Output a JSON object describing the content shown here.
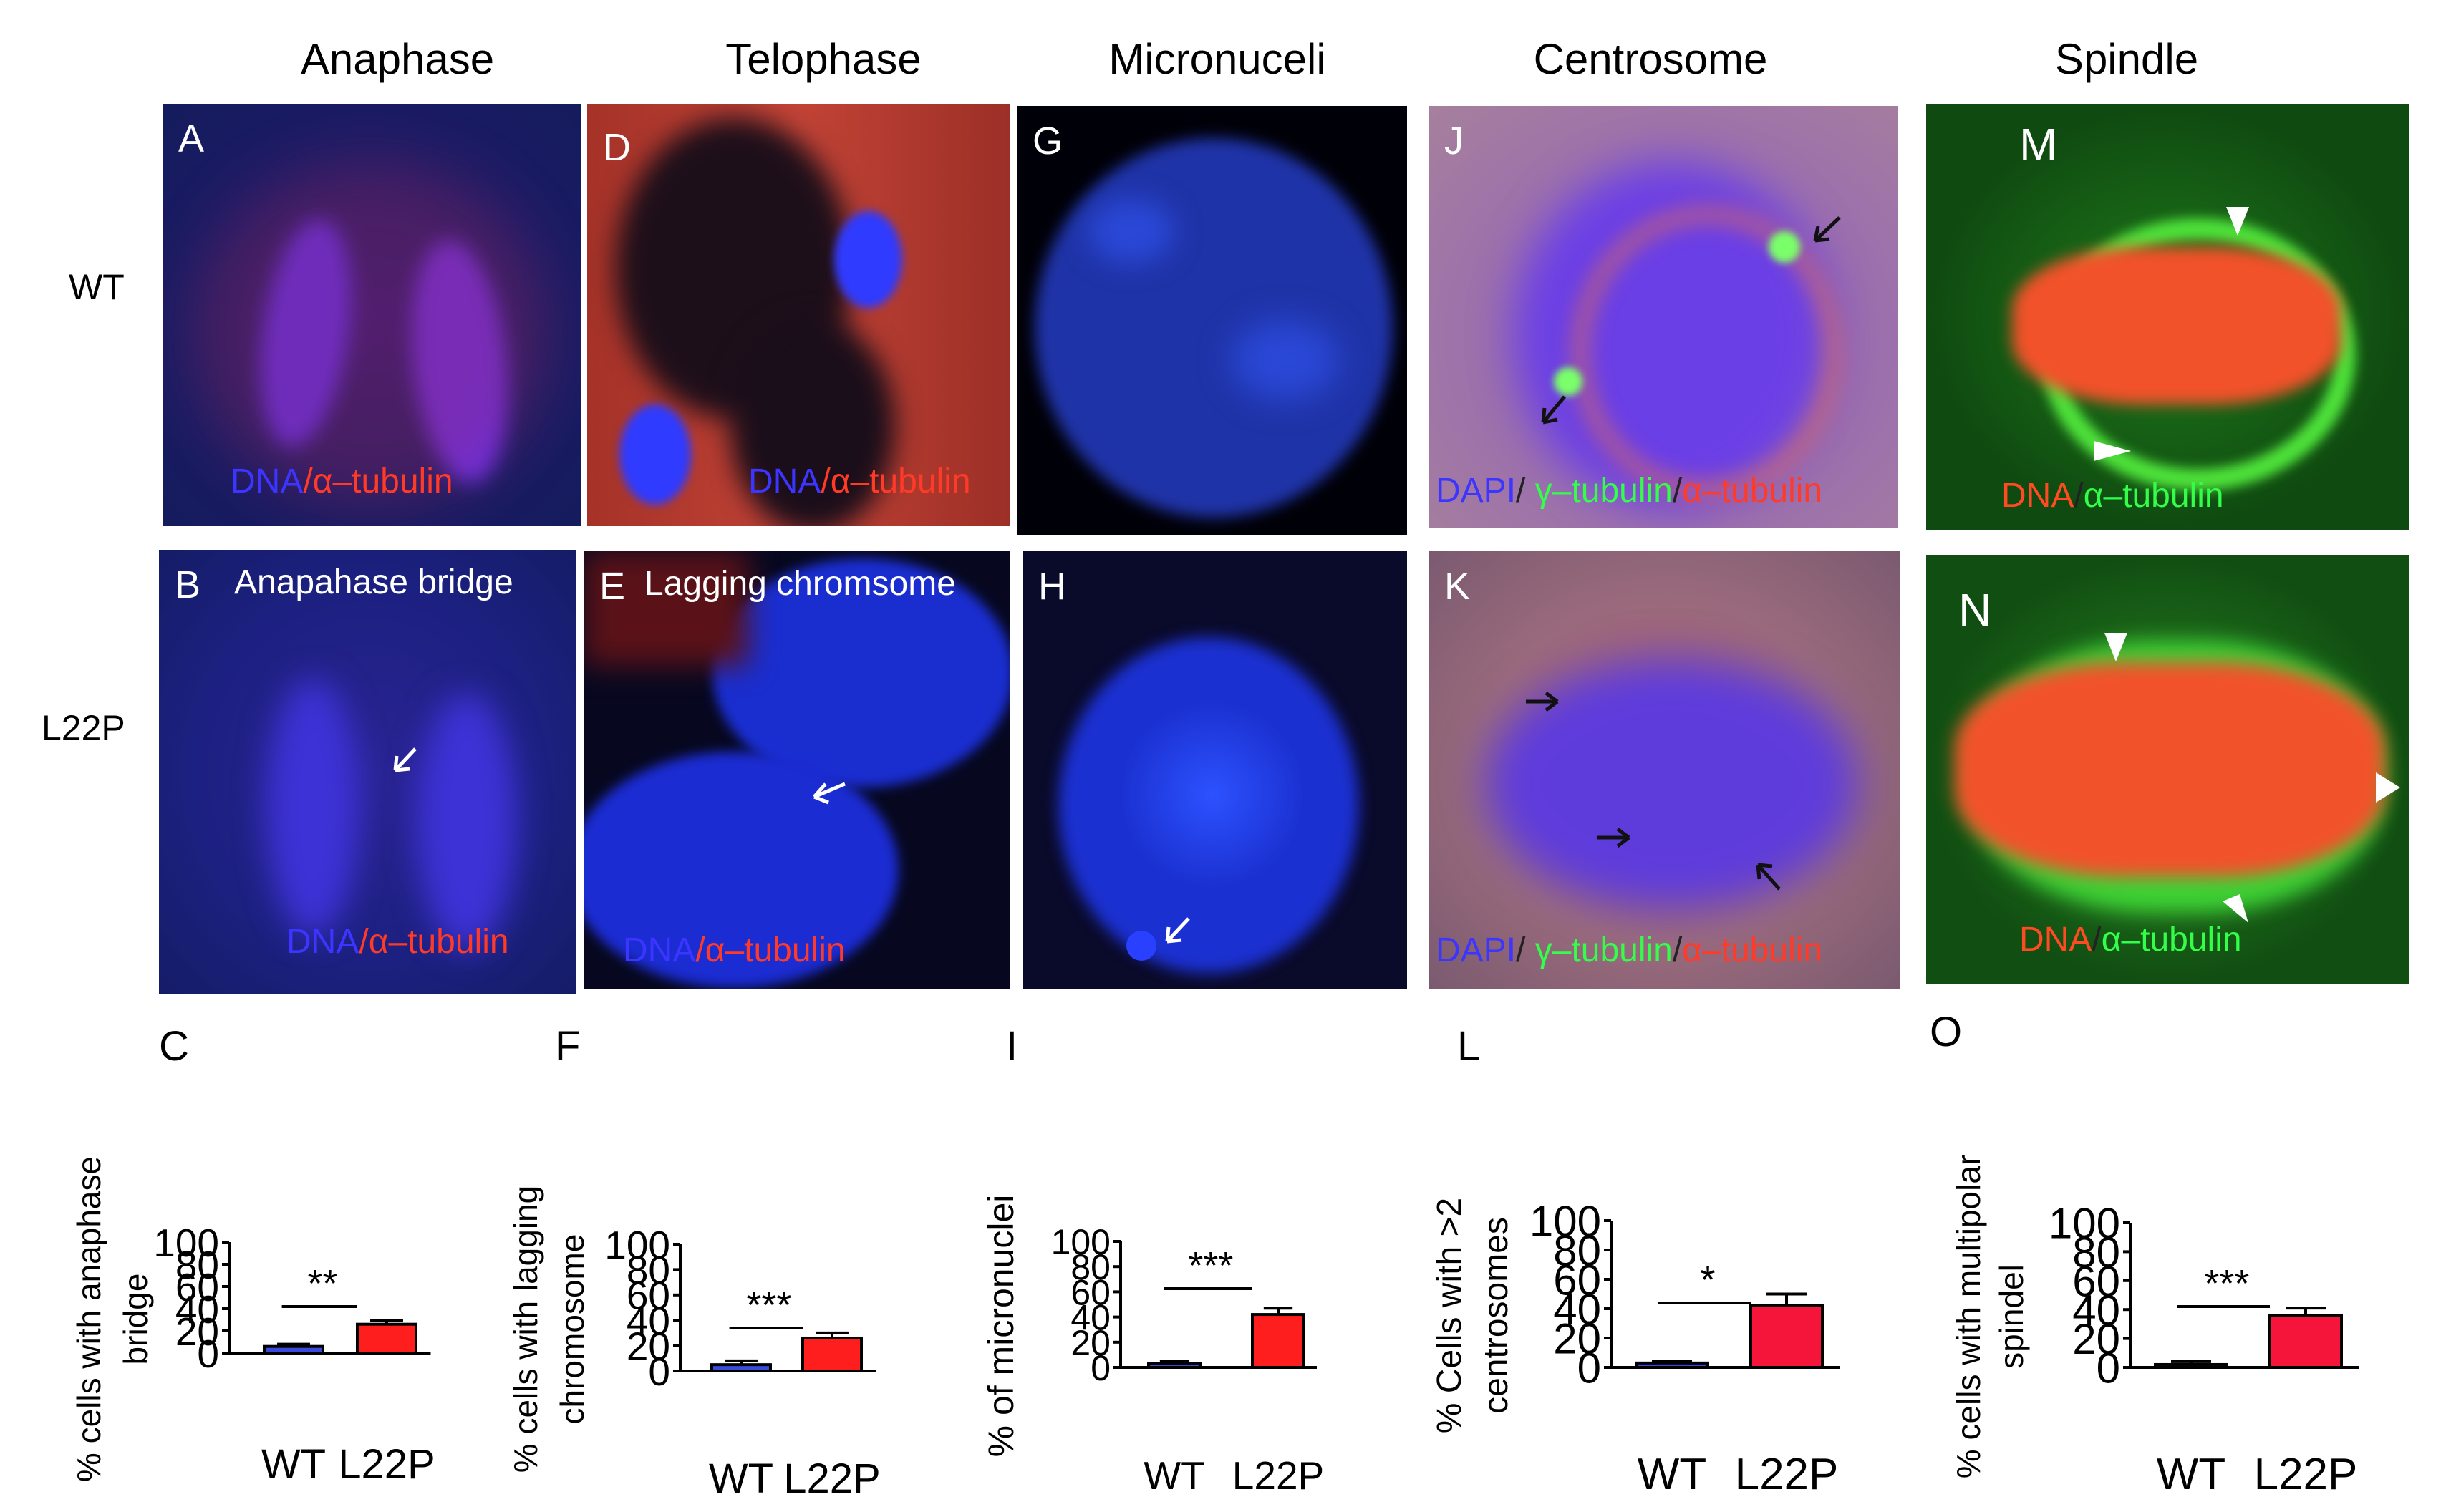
{
  "columns": [
    "Anaphase",
    "Telophase",
    "Micronuceli",
    "Centrosome",
    "Spindle"
  ],
  "rows": [
    "WT",
    "L22P"
  ],
  "panels": {
    "A": {
      "letter": "A",
      "stain_dna": "DNA",
      "stain_sep": "/",
      "stain_tub": "α–tubulin"
    },
    "B": {
      "letter": "B",
      "caption": "Anapahase bridge",
      "stain_dna": "DNA",
      "stain_sep": "/",
      "stain_tub": "α–tubulin"
    },
    "D": {
      "letter": "D",
      "stain_dna": "DNA",
      "stain_sep": "/",
      "stain_tub": "α–tubulin"
    },
    "E": {
      "letter": "E",
      "caption": "Lagging chromsome",
      "stain_dna": "DNA",
      "stain_sep": "/",
      "stain_tub": "α–tubulin"
    },
    "G": {
      "letter": "G"
    },
    "H": {
      "letter": "H"
    },
    "J": {
      "letter": "J",
      "stain_dapi": "DAPI",
      "stain_sep": "/",
      "stain_g": " γ–tubulin",
      "stain_sep2": "/",
      "stain_a": "α–tubulin"
    },
    "K": {
      "letter": "K",
      "stain_dapi": "DAPI",
      "stain_sep": "/",
      "stain_g": " γ–tubulin",
      "stain_sep2": "/",
      "stain_a": "α–tubulin"
    },
    "M": {
      "letter": "M",
      "stain_dna": "DNA",
      "stain_sep": "/",
      "stain_tub": "α–tubulin"
    },
    "N": {
      "letter": "N",
      "stain_dna": "DNA",
      "stain_sep": "/",
      "stain_tub": "α–tubulin"
    }
  },
  "graph_letters": [
    "C",
    "F",
    "I",
    "L",
    "O"
  ],
  "colors": {
    "wt_bar": "#3a4bdc",
    "l22p_bar": "#ff1e1e",
    "red_bar_alt": "#f5143a"
  },
  "chart_data": [
    {
      "panel": "C",
      "type": "bar",
      "categories": [
        "WT",
        "L22P"
      ],
      "values": [
        6,
        26
      ],
      "errors": [
        2,
        3
      ],
      "ylabel_lines": [
        "% cells with anaphase",
        "bridge"
      ],
      "ylim": [
        0,
        100
      ],
      "yticks": [
        "0",
        "20",
        "40",
        "60",
        "80",
        "100"
      ],
      "significance": "**"
    },
    {
      "panel": "F",
      "type": "bar",
      "categories": [
        "WT",
        "L22P"
      ],
      "values": [
        5,
        26
      ],
      "errors": [
        3,
        4
      ],
      "ylabel_lines": [
        "% cells with lagging",
        "chromosome"
      ],
      "ylim": [
        0,
        100
      ],
      "yticks": [
        "0",
        "20",
        "40",
        "60",
        "80",
        "100"
      ],
      "significance": "***"
    },
    {
      "panel": "I",
      "type": "bar",
      "categories": [
        "WT",
        "L22P"
      ],
      "values": [
        3,
        42
      ],
      "errors": [
        2,
        5
      ],
      "ylabel_lines": [
        "% of micronuclei"
      ],
      "ylim": [
        0,
        100
      ],
      "yticks": [
        "0",
        "20",
        "40",
        "60",
        "80",
        "100"
      ],
      "significance": "***"
    },
    {
      "panel": "L",
      "type": "bar",
      "categories": [
        "WT",
        "L22P"
      ],
      "values": [
        3,
        42
      ],
      "errors": [
        1,
        8
      ],
      "ylabel_lines": [
        "% Cells with  >2",
        "centrosomes"
      ],
      "ylim": [
        0,
        100
      ],
      "yticks": [
        "0",
        "20",
        "40",
        "60",
        "80",
        "100"
      ],
      "significance": "*"
    },
    {
      "panel": "O",
      "type": "bar",
      "categories": [
        "WT",
        "L22P"
      ],
      "values": [
        2,
        36
      ],
      "errors": [
        2,
        5
      ],
      "ylabel_lines": [
        "% cells with multipolar",
        "spindel"
      ],
      "ylim": [
        0,
        100
      ],
      "yticks": [
        "0",
        "20",
        "40",
        "60",
        "80",
        "100"
      ],
      "significance": "***"
    }
  ]
}
